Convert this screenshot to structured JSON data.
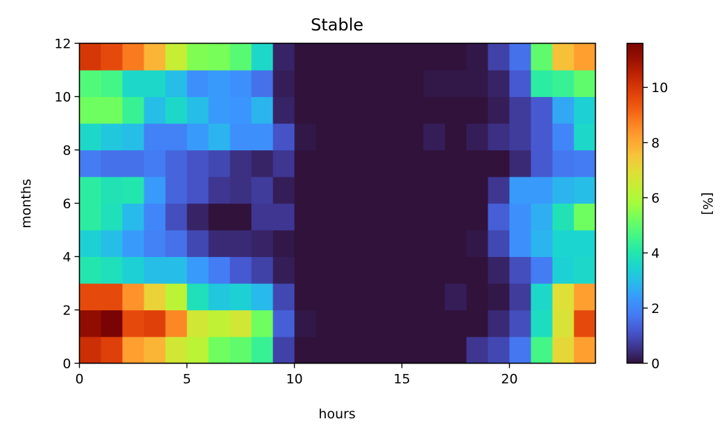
{
  "chart_data": {
    "type": "heatmap",
    "title": "Stable",
    "xlabel": "hours",
    "ylabel": "months",
    "colorbar_label": "[%]",
    "colormap": "turbo",
    "xlim": [
      0,
      24
    ],
    "ylim": [
      0,
      12
    ],
    "vmin": 0,
    "vmax": 11.6,
    "x_ticks": [
      0,
      5,
      10,
      15,
      20
    ],
    "y_ticks": [
      0,
      2,
      4,
      6,
      8,
      10,
      12
    ],
    "colorbar_ticks": [
      0,
      2,
      4,
      6,
      8,
      10
    ],
    "grid": false,
    "rows": [
      [
        10.2,
        9.8,
        8.2,
        7.8,
        6.6,
        6.2,
        5.2,
        5.0,
        4.4,
        0.8,
        0,
        0,
        0,
        0,
        0,
        0,
        0,
        0,
        0.6,
        0.9,
        1.7,
        4.6,
        7.1,
        8.2
      ],
      [
        11.2,
        11.6,
        9.6,
        9.8,
        8.6,
        6.6,
        6.3,
        6.6,
        5.2,
        1.3,
        0.1,
        0,
        0,
        0,
        0,
        0,
        0,
        0,
        0,
        0.4,
        1.0,
        3.7,
        6.8,
        9.6
      ],
      [
        9.6,
        9.6,
        8.4,
        7.2,
        6.2,
        3.8,
        3.2,
        3.4,
        2.9,
        0.9,
        0,
        0,
        0,
        0,
        0,
        0,
        0,
        0.2,
        0,
        0.1,
        0.7,
        3.6,
        6.9,
        8.2
      ],
      [
        4.0,
        3.8,
        3.4,
        3.0,
        3.0,
        2.4,
        1.8,
        1.2,
        0.8,
        0.2,
        0,
        0,
        0,
        0,
        0,
        0,
        0,
        0,
        0,
        0.3,
        1.0,
        1.8,
        3.4,
        3.6
      ],
      [
        3.4,
        3.0,
        2.4,
        1.9,
        1.6,
        0.9,
        0.4,
        0.4,
        0.3,
        0.1,
        0,
        0,
        0,
        0,
        0,
        0,
        0,
        0,
        0.1,
        0.9,
        2.2,
        2.8,
        3.5,
        3.5
      ],
      [
        4.2,
        3.8,
        2.9,
        2.0,
        1.0,
        0.3,
        0,
        0,
        0.6,
        0.6,
        0,
        0,
        0,
        0,
        0,
        0,
        0,
        0,
        0,
        1.3,
        2.2,
        2.7,
        3.9,
        5.2
      ],
      [
        4.2,
        3.9,
        4.0,
        2.4,
        1.4,
        1.1,
        0.6,
        0.5,
        0.7,
        0.2,
        0,
        0,
        0,
        0,
        0,
        0,
        0,
        0,
        0,
        0.6,
        2.4,
        2.4,
        2.8,
        3.0
      ],
      [
        1.8,
        1.6,
        1.6,
        1.8,
        1.4,
        1.1,
        0.9,
        0.5,
        0.3,
        0.6,
        0,
        0,
        0,
        0,
        0,
        0,
        0,
        0,
        0,
        0,
        0.4,
        1.2,
        1.7,
        1.8
      ],
      [
        3.6,
        3.2,
        3.0,
        1.9,
        1.9,
        2.4,
        2.8,
        2.2,
        2.2,
        1.1,
        0.1,
        0,
        0,
        0,
        0,
        0,
        0.2,
        0,
        0.2,
        0.5,
        0.7,
        1.2,
        2.0,
        3.6
      ],
      [
        5.2,
        5.2,
        4.4,
        3.0,
        3.6,
        3.0,
        2.4,
        2.3,
        2.8,
        0.3,
        0,
        0,
        0,
        0,
        0,
        0,
        0,
        0,
        0,
        0.2,
        0.7,
        1.2,
        2.6,
        3.4
      ],
      [
        4.8,
        4.6,
        3.6,
        3.6,
        3.0,
        2.2,
        2.4,
        2.2,
        1.6,
        0.2,
        0,
        0,
        0,
        0,
        0,
        0,
        0.1,
        0.1,
        0.1,
        0.3,
        1.2,
        4.2,
        4.4,
        5.0
      ],
      [
        10.0,
        9.6,
        8.8,
        7.8,
        6.4,
        5.4,
        5.3,
        4.9,
        3.6,
        0.3,
        0,
        0,
        0,
        0,
        0,
        0,
        0,
        0,
        0.1,
        0.8,
        1.6,
        5.0,
        7.6,
        8.2
      ]
    ]
  }
}
